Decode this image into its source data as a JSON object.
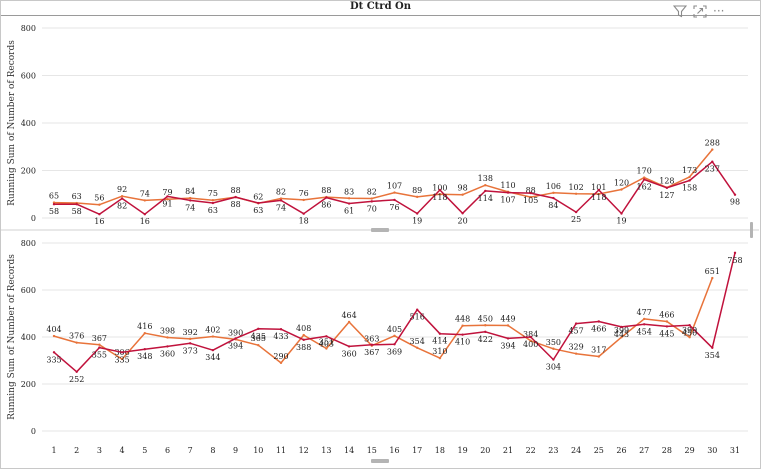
{
  "window": {
    "title": "Dt Ctrd On"
  },
  "toolbar": {
    "icons": [
      "filter-icon",
      "focus-mode-icon",
      "more-options-icon"
    ],
    "more_label": "···"
  },
  "colors": {
    "series_dark": "#c0123c",
    "series_light": "#e8733a",
    "grid": "#e6e6e6",
    "axis_text": "#222222"
  },
  "chart_data": [
    {
      "type": "line",
      "ylabel": "Running Sum of Number of Records",
      "ylim": [
        0,
        800
      ],
      "yticks": [
        0,
        200,
        400,
        600,
        800
      ],
      "x": [
        1,
        2,
        3,
        4,
        5,
        6,
        7,
        8,
        9,
        10,
        11,
        12,
        13,
        14,
        15,
        16,
        17,
        18,
        19,
        20,
        21,
        22,
        23,
        24,
        25,
        26,
        27,
        28,
        29,
        30,
        31
      ],
      "grid": true,
      "series": [
        {
          "values": [
            65,
            63,
            56,
            92,
            74,
            79,
            84,
            75,
            88,
            62,
            82,
            76,
            88,
            83,
            82,
            107,
            89,
            100,
            98,
            138,
            110,
            88,
            106,
            102,
            101,
            120,
            170,
            128,
            173,
            288,
            null
          ]
        },
        {
          "values": [
            58,
            58,
            16,
            82,
            16,
            91,
            74,
            63,
            88,
            63,
            74,
            18,
            86,
            61,
            70,
            76,
            19,
            118,
            20,
            114,
            107,
            105,
            84,
            25,
            118,
            19,
            162,
            127,
            158,
            237,
            98
          ]
        }
      ]
    },
    {
      "type": "line",
      "ylabel": "Running Sum of Number of Records",
      "ylim": [
        0,
        800
      ],
      "yticks": [
        0,
        200,
        400,
        600,
        800
      ],
      "x": [
        1,
        2,
        3,
        4,
        5,
        6,
        7,
        8,
        9,
        10,
        11,
        12,
        13,
        14,
        15,
        16,
        17,
        18,
        19,
        20,
        21,
        22,
        23,
        24,
        25,
        26,
        27,
        28,
        29,
        30,
        31
      ],
      "xticks": [
        "1",
        "2",
        "3",
        "4",
        "5",
        "6",
        "7",
        "8",
        "9",
        "10",
        "11",
        "12",
        "13",
        "14",
        "15",
        "16",
        "17",
        "18",
        "19",
        "20",
        "21",
        "22",
        "23",
        "24",
        "25",
        "26",
        "27",
        "28",
        "29",
        "30",
        "31"
      ],
      "grid": true,
      "series": [
        {
          "values": [
            404,
            376,
            367,
            306,
            416,
            398,
            392,
            402,
            390,
            365,
            290,
            408,
            351,
            464,
            363,
            405,
            354,
            310,
            448,
            450,
            449,
            384,
            350,
            329,
            317,
            399,
            477,
            466,
            399,
            651,
            null
          ]
        },
        {
          "values": [
            335,
            252,
            355,
            335,
            348,
            360,
            373,
            344,
            394,
            435,
            433,
            388,
            403,
            360,
            367,
            369,
            516,
            414,
            410,
            422,
            394,
            400,
            304,
            457,
            466,
            443,
            454,
            445,
            450,
            354,
            758
          ]
        }
      ]
    }
  ]
}
